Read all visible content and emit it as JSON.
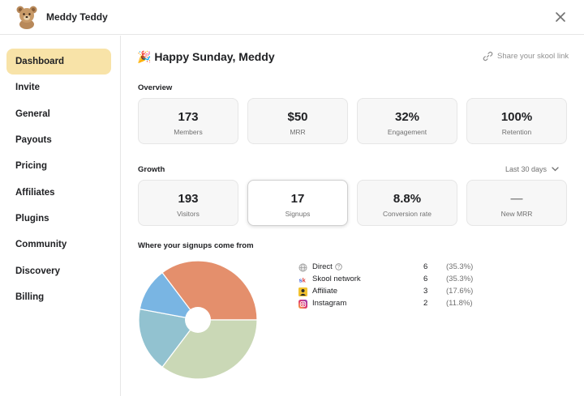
{
  "header": {
    "title": "Meddy Teddy"
  },
  "sidebar": {
    "items": [
      {
        "label": "Dashboard"
      },
      {
        "label": "Invite"
      },
      {
        "label": "General"
      },
      {
        "label": "Payouts"
      },
      {
        "label": "Pricing"
      },
      {
        "label": "Affiliates"
      },
      {
        "label": "Plugins"
      },
      {
        "label": "Community"
      },
      {
        "label": "Discovery"
      },
      {
        "label": "Billing"
      }
    ],
    "active": "Dashboard"
  },
  "main": {
    "greeting_emoji": "🎉",
    "greeting": "Happy Sunday, Meddy",
    "share_label": "Share your skool link",
    "overview": {
      "title": "Overview",
      "cards": [
        {
          "value": "173",
          "label": "Members"
        },
        {
          "value": "$50",
          "label": "MRR"
        },
        {
          "value": "32%",
          "label": "Engagement"
        },
        {
          "value": "100%",
          "label": "Retention"
        }
      ]
    },
    "growth": {
      "title": "Growth",
      "range": "Last 30 days",
      "cards": [
        {
          "value": "193",
          "label": "Visitors"
        },
        {
          "value": "17",
          "label": "Signups"
        },
        {
          "value": "8.8%",
          "label": "Conversion rate"
        },
        {
          "value": "—",
          "label": "New MRR"
        }
      ]
    },
    "signups": {
      "title": "Where your signups come from",
      "sources": [
        {
          "name": "Direct",
          "count": "6",
          "pct": "(35.3%)",
          "icon": "globe-icon"
        },
        {
          "name": "Skool network",
          "count": "6",
          "pct": "(35.3%)",
          "icon": "skool-icon"
        },
        {
          "name": "Affiliate",
          "count": "3",
          "pct": "(17.6%)",
          "icon": "affiliate-icon"
        },
        {
          "name": "Instagram",
          "count": "2",
          "pct": "(11.8%)",
          "icon": "instagram-icon"
        }
      ]
    }
  },
  "chart_data": {
    "type": "pie",
    "title": "Where your signups come from",
    "categories": [
      "Direct",
      "Skool network",
      "Affiliate",
      "Instagram"
    ],
    "values": [
      6,
      6,
      3,
      2
    ],
    "colors": [
      "#e48f6c",
      "#cad8b6",
      "#92c2d0",
      "#79b5e3"
    ],
    "donut_hole": true
  },
  "colors": {
    "active_nav": "#f8e3a8",
    "card_bg": "#f7f7f7"
  }
}
